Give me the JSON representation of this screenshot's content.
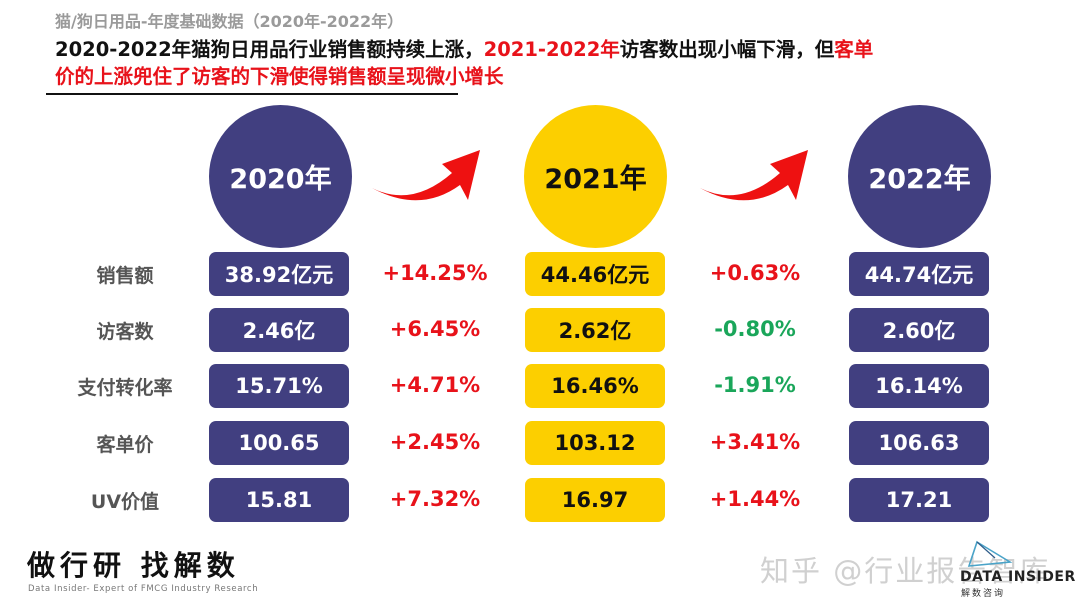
{
  "header": {
    "subtitle": "猫/狗日用品-年度基础数据（2020年-2022年）",
    "headline_parts": [
      {
        "text": "2020-2022年猫狗日用品行业销售额持续上涨，",
        "color": "black"
      },
      {
        "text": "2021-2022年",
        "color": "red"
      },
      {
        "text": "访客数出现小幅下滑，但",
        "color": "black"
      },
      {
        "text": "客单",
        "color": "red"
      }
    ],
    "headline_line2": "价的上涨兜住了访客的下滑使得销售额呈现微小增长"
  },
  "years": [
    {
      "label": "2020年",
      "style": "navy"
    },
    {
      "label": "2021年",
      "style": "yellow"
    },
    {
      "label": "2022年",
      "style": "navy"
    }
  ],
  "arrows": [
    "curved-arrow-up-right",
    "curved-arrow-up-right"
  ],
  "metrics": [
    {
      "label": "销售额",
      "v2020": "38.92亿元",
      "chg1": "+14.25%",
      "chg1_dir": "up",
      "v2021": "44.46亿元",
      "chg2": "+0.63%",
      "chg2_dir": "up",
      "v2022": "44.74亿元"
    },
    {
      "label": "访客数",
      "v2020": "2.46亿",
      "chg1": "+6.45%",
      "chg1_dir": "up",
      "v2021": "2.62亿",
      "chg2": "-0.80%",
      "chg2_dir": "down",
      "v2022": "2.60亿"
    },
    {
      "label": "支付转化率",
      "v2020": "15.71%",
      "chg1": "+4.71%",
      "chg1_dir": "up",
      "v2021": "16.46%",
      "chg2": "-1.91%",
      "chg2_dir": "down",
      "v2022": "16.14%"
    },
    {
      "label": "客单价",
      "v2020": "100.65",
      "chg1": "+2.45%",
      "chg1_dir": "up",
      "v2021": "103.12",
      "chg2": "+3.41%",
      "chg2_dir": "up",
      "v2022": "106.63"
    },
    {
      "label": "UV价值",
      "v2020": "15.81",
      "chg1": "+7.32%",
      "chg1_dir": "up",
      "v2021": "16.97",
      "chg2": "+1.44%",
      "chg2_dir": "up",
      "v2022": "17.21"
    }
  ],
  "colors": {
    "navy": "#413f80",
    "yellow": "#fccf00",
    "increase": "#e8121a",
    "decrease": "#1aa65a"
  },
  "footer": {
    "slogan": "做行研 找解数",
    "slogan_sub": "Data Insider- Expert of FMCG Industry Research",
    "watermark": "知乎 @行业报告智库",
    "logo_name": "DATA INSIDER",
    "logo_cn": "解数咨询"
  }
}
